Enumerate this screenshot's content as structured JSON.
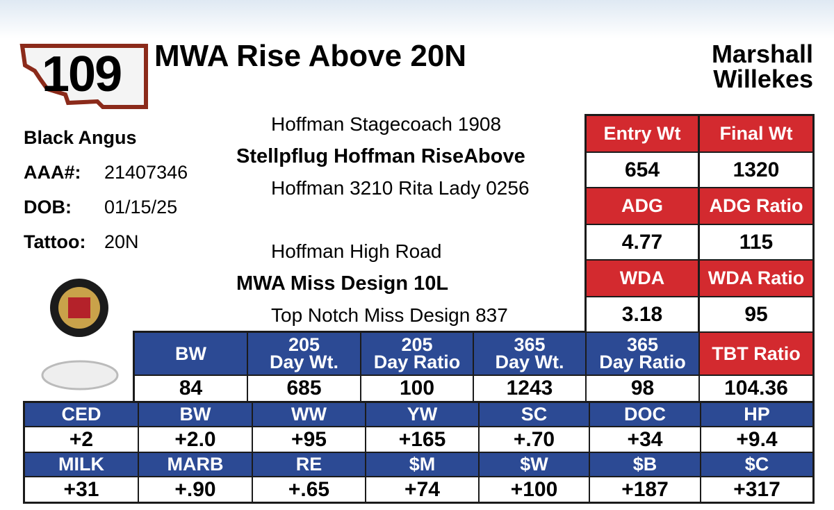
{
  "lot": "109",
  "name": "MWA Rise Above 20N",
  "consignor": "Marshall\nWillekes",
  "breed": "Black Angus",
  "details": [
    {
      "label": "AAA#:",
      "value": "21407346"
    },
    {
      "label": "DOB:",
      "value": "01/15/25"
    },
    {
      "label": "Tattoo:",
      "value": "20N"
    }
  ],
  "pedigree": {
    "sire_sire": "Hoffman Stagecoach 1908",
    "sire": "Stellpflug Hoffman RiseAbove",
    "sire_dam": "Hoffman 3210 Rita Lady 0256",
    "dam_sire": "Hoffman High Road",
    "dam": "MWA Miss Design 10L",
    "dam_dam": "Top Notch Miss Design 837"
  },
  "performance": [
    {
      "headers": [
        "Entry Wt",
        "Final Wt"
      ],
      "values": [
        654,
        1320
      ]
    },
    {
      "headers": [
        "ADG",
        "ADG Ratio"
      ],
      "values": [
        4.77,
        115
      ]
    },
    {
      "headers": [
        "WDA",
        "WDA Ratio"
      ],
      "values": [
        3.18,
        95
      ]
    }
  ],
  "weights": {
    "headers": [
      "BW",
      "205\nDay Wt.",
      "205\nDay Ratio",
      "365\nDay Wt.",
      "365\nDay Ratio",
      "TBT Ratio"
    ],
    "values": [
      84,
      685,
      100,
      1243,
      98,
      104.36
    ]
  },
  "epds": [
    {
      "headers": [
        "CED",
        "BW",
        "WW",
        "YW",
        "SC",
        "DOC",
        "HP"
      ],
      "values": [
        "+2",
        "+2.0",
        "+95",
        "+165",
        "+.70",
        "+34",
        "+9.4"
      ]
    },
    {
      "headers": [
        "MILK",
        "MARB",
        "RE",
        "$M",
        "$W",
        "$B",
        "$C"
      ],
      "values": [
        "+31",
        "+.90",
        "+.65",
        "+74",
        "+100",
        "+187",
        "+317"
      ]
    }
  ]
}
